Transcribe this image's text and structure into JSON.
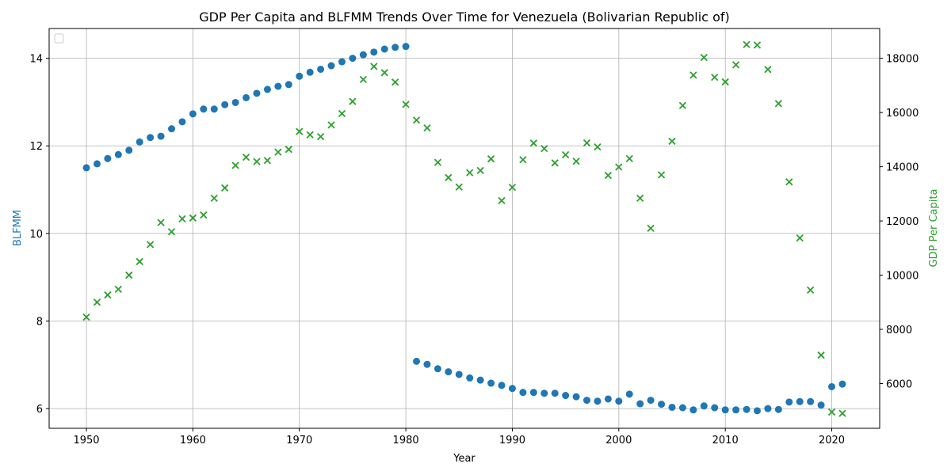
{
  "chart_data": {
    "type": "scatter",
    "title": "GDP Per Capita and BLFMM Trends Over Time for Venezuela (Bolivarian Republic of)",
    "xlabel": "Year",
    "ylabel_left": "BLFMM",
    "ylabel_right": "GDP Per Capita",
    "xlim": [
      1946.5,
      2024.5
    ],
    "ylim_left": [
      5.55,
      14.68
    ],
    "ylim_right": [
      4350,
      19100
    ],
    "x_ticks": [
      1950,
      1960,
      1970,
      1980,
      1990,
      2000,
      2010,
      2020
    ],
    "y_left_ticks": [
      6,
      8,
      10,
      12,
      14
    ],
    "y_right_ticks": [
      6000,
      8000,
      10000,
      12000,
      14000,
      16000,
      18000
    ],
    "grid": true,
    "legend": "top-left (empty)",
    "colors": {
      "blfmm": "#1f77b4",
      "gdp": "#2ca02c"
    },
    "series": [
      {
        "axis": "left",
        "marker": "circle",
        "x": [
          1950,
          1951,
          1952,
          1953,
          1954,
          1955,
          1956,
          1957,
          1958,
          1959,
          1960,
          1961,
          1962,
          1963,
          1964,
          1965,
          1966,
          1967,
          1968,
          1969,
          1970,
          1971,
          1972,
          1973,
          1974,
          1975,
          1976,
          1977,
          1978,
          1979,
          1980,
          1981,
          1982,
          1983,
          1984,
          1985,
          1986,
          1987,
          1988,
          1989,
          1990,
          1991,
          1992,
          1993,
          1994,
          1995,
          1996,
          1997,
          1998,
          1999,
          2000,
          2001,
          2002,
          2003,
          2004,
          2005,
          2006,
          2007,
          2008,
          2009,
          2010,
          2011,
          2012,
          2013,
          2014,
          2015,
          2016,
          2017,
          2018,
          2019,
          2020,
          2021
        ],
        "values": [
          11.5,
          11.59,
          11.71,
          11.8,
          11.9,
          12.09,
          12.19,
          12.22,
          12.39,
          12.55,
          12.73,
          12.84,
          12.84,
          12.94,
          12.99,
          13.1,
          13.2,
          13.29,
          13.36,
          13.4,
          13.59,
          13.68,
          13.75,
          13.83,
          13.92,
          14.0,
          14.08,
          14.14,
          14.21,
          14.25,
          14.27,
          7.08,
          7.01,
          6.91,
          6.84,
          6.78,
          6.7,
          6.65,
          6.58,
          6.53,
          6.46,
          6.37,
          6.37,
          6.35,
          6.35,
          6.3,
          6.27,
          6.19,
          6.17,
          6.22,
          6.17,
          6.33,
          6.11,
          6.19,
          6.1,
          6.03,
          6.02,
          5.97,
          6.06,
          6.02,
          5.97,
          5.97,
          5.98,
          5.95,
          6.0,
          5.98,
          6.15,
          6.16,
          6.16,
          6.08,
          6.5,
          6.56
        ]
      },
      {
        "axis": "right",
        "marker": "x",
        "x": [
          1950,
          1951,
          1952,
          1953,
          1954,
          1955,
          1956,
          1957,
          1958,
          1959,
          1960,
          1961,
          1962,
          1963,
          1964,
          1965,
          1966,
          1967,
          1968,
          1969,
          1970,
          1971,
          1972,
          1973,
          1974,
          1975,
          1976,
          1977,
          1978,
          1979,
          1980,
          1981,
          1982,
          1983,
          1984,
          1985,
          1986,
          1987,
          1988,
          1989,
          1990,
          1991,
          1992,
          1993,
          1994,
          1995,
          1996,
          1997,
          1998,
          1999,
          2000,
          2001,
          2002,
          2003,
          2004,
          2005,
          2006,
          2007,
          2008,
          2009,
          2010,
          2011,
          2012,
          2013,
          2014,
          2015,
          2016,
          2017,
          2018,
          2019,
          2020,
          2021
        ],
        "values": [
          8450,
          9000,
          9270,
          9480,
          10000,
          10500,
          11130,
          11940,
          11600,
          12080,
          12110,
          12220,
          12840,
          13220,
          14050,
          14350,
          14190,
          14230,
          14540,
          14640,
          15300,
          15180,
          15110,
          15540,
          15960,
          16410,
          17220,
          17700,
          17470,
          17120,
          16300,
          15720,
          15430,
          14160,
          13600,
          13250,
          13780,
          13860,
          14290,
          12750,
          13240,
          14260,
          14870,
          14670,
          14140,
          14440,
          14200,
          14880,
          14730,
          13680,
          13990,
          14300,
          12840,
          11730,
          13700,
          14940,
          16260,
          17380,
          18030,
          17300,
          17130,
          17760,
          18510,
          18490,
          17590,
          16330,
          13440,
          11370,
          9450,
          7050,
          4950,
          4900
        ]
      }
    ]
  }
}
